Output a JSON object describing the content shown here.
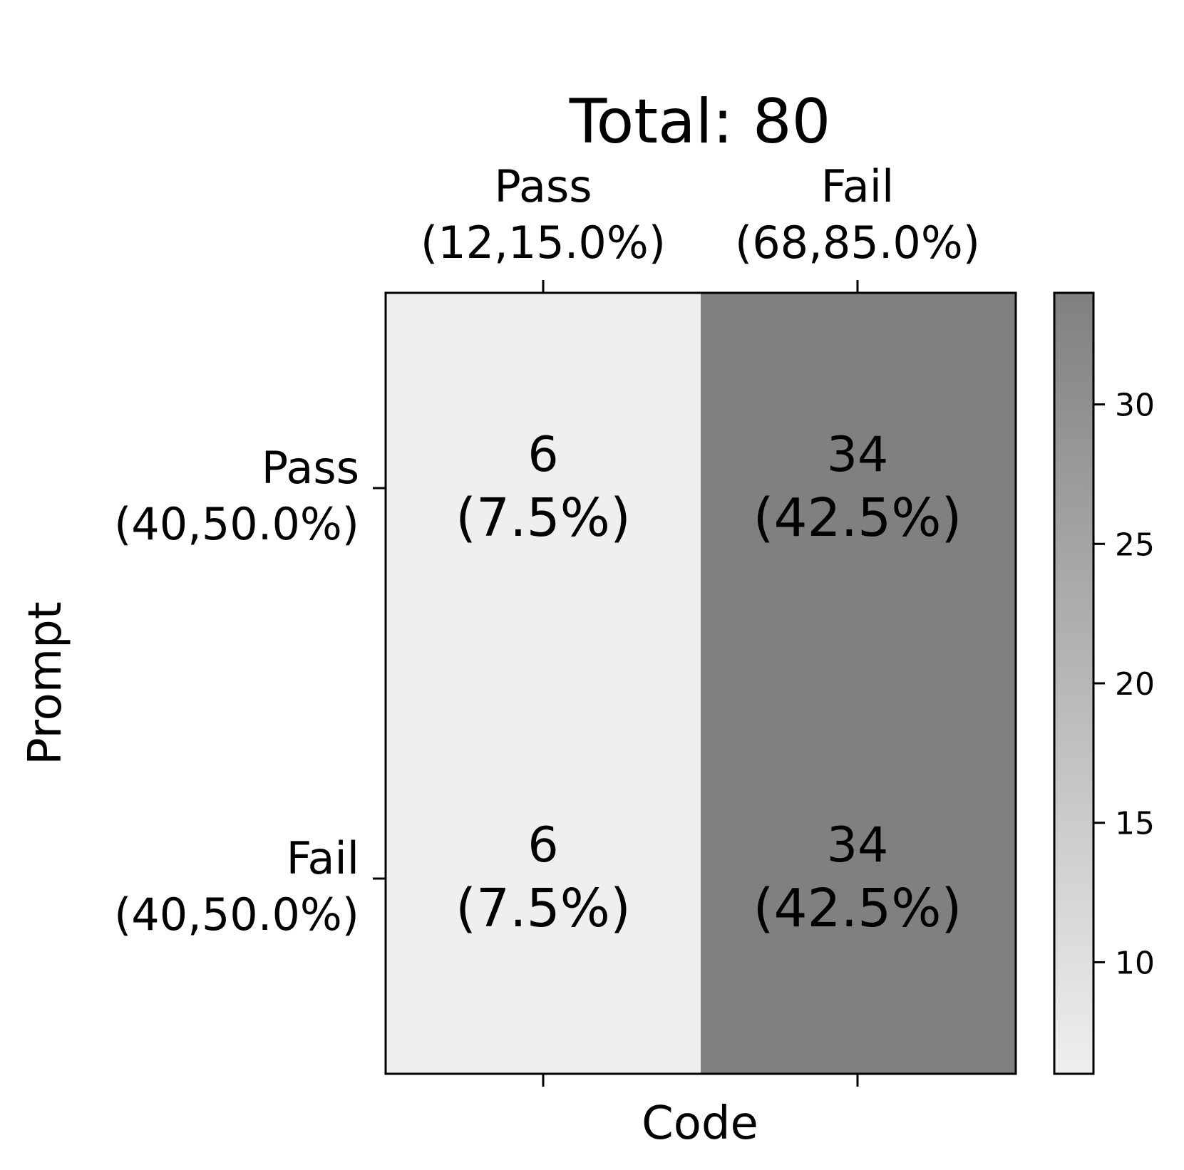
{
  "chart_data": {
    "type": "heatmap",
    "title": "Total: 80",
    "xlabel": "Code",
    "ylabel": "Prompt",
    "x_categories": [
      {
        "name": "Pass",
        "summary": "(12,15.0%)"
      },
      {
        "name": "Fail",
        "summary": "(68,85.0%)"
      }
    ],
    "y_categories": [
      {
        "name": "Pass",
        "summary": "(40,50.0%)"
      },
      {
        "name": "Fail",
        "summary": "(40,50.0%)"
      }
    ],
    "cells": [
      [
        {
          "count": "6",
          "pct": "(7.5%)",
          "value": 6
        },
        {
          "count": "34",
          "pct": "(42.5%)",
          "value": 34
        }
      ],
      [
        {
          "count": "6",
          "pct": "(7.5%)",
          "value": 6
        },
        {
          "count": "34",
          "pct": "(42.5%)",
          "value": 34
        }
      ]
    ],
    "colorbar": {
      "min": 6,
      "max": 34,
      "ticks": [
        10,
        15,
        20,
        25,
        30
      ],
      "colormap": "greys",
      "color_low": "#efefef",
      "color_high": "#808080"
    },
    "x_axis_position": "top",
    "grid": false
  }
}
